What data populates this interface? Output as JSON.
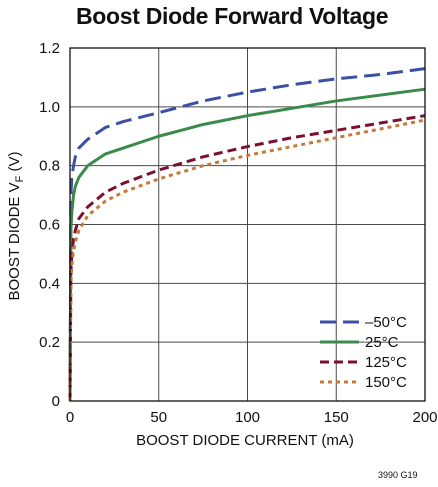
{
  "chart_data": {
    "type": "line",
    "title": "Boost Diode Forward Voltage",
    "xlabel": "BOOST DIODE CURRENT (mA)",
    "ylabel": {
      "main": "BOOST DIODE V",
      "subscript": "F",
      "unit": " (V)"
    },
    "xlim": [
      0,
      200
    ],
    "ylim": [
      0,
      1.2
    ],
    "x_ticks": [
      "0",
      "50",
      "100",
      "150",
      "200"
    ],
    "y_ticks": [
      "0",
      "0.2",
      "0.4",
      "0.6",
      "0.8",
      "1.0",
      "1.2"
    ],
    "grid": true,
    "legend_position": "bottom-right",
    "series": [
      {
        "name": "–50°C",
        "color": "#3a50a4",
        "dash": "long-dash",
        "x": [
          0,
          0.5,
          1,
          2,
          3,
          5,
          10,
          20,
          30,
          50,
          75,
          100,
          125,
          150,
          175,
          200
        ],
        "y": [
          0,
          0.7,
          0.76,
          0.8,
          0.83,
          0.86,
          0.89,
          0.93,
          0.95,
          0.98,
          1.02,
          1.05,
          1.075,
          1.095,
          1.11,
          1.13
        ]
      },
      {
        "name": "25°C",
        "color": "#3a8a4c",
        "dash": "solid",
        "x": [
          0,
          0.5,
          1,
          2,
          3,
          5,
          10,
          20,
          30,
          50,
          75,
          100,
          125,
          150,
          175,
          200
        ],
        "y": [
          0,
          0.58,
          0.64,
          0.7,
          0.73,
          0.76,
          0.8,
          0.84,
          0.86,
          0.9,
          0.94,
          0.97,
          0.995,
          1.02,
          1.04,
          1.06
        ]
      },
      {
        "name": "125°C",
        "color": "#7a1030",
        "dash": "medium-dash",
        "x": [
          0,
          0.5,
          1,
          2,
          3,
          5,
          10,
          20,
          30,
          50,
          75,
          100,
          125,
          150,
          175,
          200
        ],
        "y": [
          0,
          0.44,
          0.5,
          0.55,
          0.58,
          0.62,
          0.66,
          0.71,
          0.74,
          0.785,
          0.83,
          0.865,
          0.895,
          0.92,
          0.945,
          0.97
        ]
      },
      {
        "name": "150°C",
        "color": "#c47a3a",
        "dash": "short-dash",
        "x": [
          0,
          0.5,
          1,
          2,
          3,
          5,
          10,
          20,
          30,
          50,
          75,
          100,
          125,
          150,
          175,
          200
        ],
        "y": [
          0,
          0.4,
          0.46,
          0.51,
          0.54,
          0.58,
          0.63,
          0.68,
          0.71,
          0.755,
          0.8,
          0.835,
          0.865,
          0.895,
          0.925,
          0.955
        ]
      }
    ]
  },
  "figure_id": "3990 G19"
}
